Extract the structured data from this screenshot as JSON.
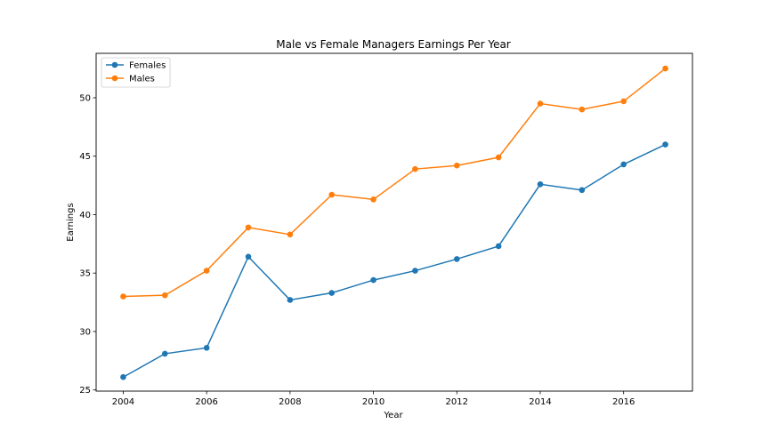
{
  "chart_data": {
    "type": "line",
    "title": "Male vs Female Managers Earnings Per Year",
    "xlabel": "Year",
    "ylabel": "Earnings",
    "x": [
      2004,
      2005,
      2006,
      2007,
      2008,
      2009,
      2010,
      2011,
      2012,
      2013,
      2014,
      2015,
      2016,
      2017
    ],
    "xlim": [
      2003.35,
      2017.65
    ],
    "ylim": [
      24.9,
      53.8
    ],
    "xticks": [
      2004,
      2006,
      2008,
      2010,
      2012,
      2014,
      2016
    ],
    "yticks": [
      25,
      30,
      35,
      40,
      45,
      50
    ],
    "grid": false,
    "legend_position": "top-left",
    "series": [
      {
        "name": "Females",
        "color": "#1f77b4",
        "marker": "circle",
        "values": [
          26.1,
          28.1,
          28.6,
          36.4,
          32.7,
          33.3,
          34.4,
          35.2,
          36.2,
          37.3,
          42.6,
          42.1,
          44.3,
          46.0
        ]
      },
      {
        "name": "Males",
        "color": "#ff7f0e",
        "marker": "circle",
        "values": [
          33.0,
          33.1,
          35.2,
          38.9,
          38.3,
          41.7,
          41.3,
          43.9,
          44.2,
          44.9,
          49.5,
          49.0,
          49.7,
          52.5
        ]
      }
    ]
  }
}
